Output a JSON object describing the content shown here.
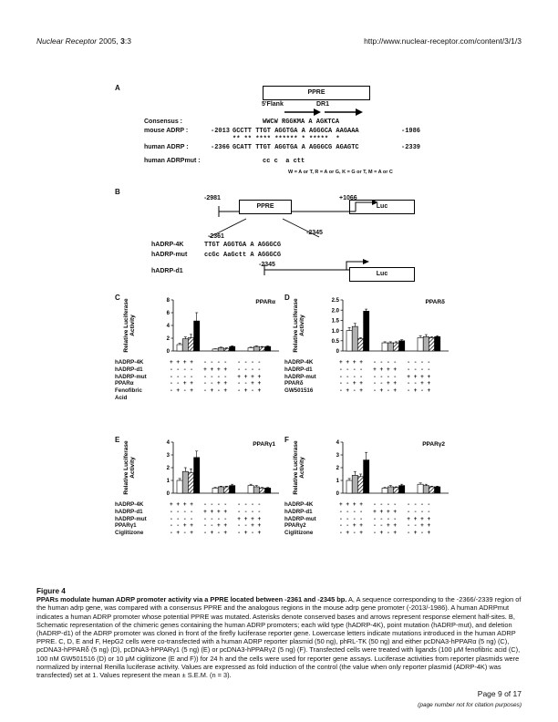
{
  "header": {
    "journal": "Nuclear Receptor",
    "volume": "2005, ",
    "issue": "3",
    "issue_suffix": ":3",
    "url": "http://www.nuclear-receptor.com/content/3/1/3"
  },
  "panel_a": {
    "label": "A",
    "ppre_box": "PPRE",
    "flank_label": "5'Flank",
    "dr1_label": "DR1",
    "rows": [
      {
        "name": "Consensus :",
        "start": "",
        "seq": "WWCW RGGKMA A AGKTCA",
        "end": ""
      },
      {
        "name": "mouse ADRP :",
        "start": "-2013",
        "seq": "GCCTT TTGT AGGTGA A AGGGCA AAGAAA",
        "end": "-1986"
      },
      {
        "name": "",
        "start": "",
        "seq": "** ** **** ****** * *****  *",
        "end": ""
      },
      {
        "name": "human ADRP :",
        "start": "-2366",
        "seq": "GCATT TTGT AGGTGA A AGGGCG AGAGTC",
        "end": "-2339"
      },
      {
        "name": "human ADRPmut :",
        "start": "",
        "seq": "cc c  a ctt",
        "end": ""
      }
    ],
    "legend": "W = A or T,   R = A or G,   K = G or T,   M = A or C"
  },
  "panel_b": {
    "label": "B",
    "pos_left": "-2981",
    "pos_right": "+1066",
    "ppre": "PPRE",
    "luc": "Luc",
    "pos_a": "-2361",
    "pos_b": "-2345",
    "pos_c": "-2345",
    "rows": [
      {
        "name": "hADRP-4K",
        "seq": "TTGT AGGTGA A AGGGCG"
      },
      {
        "name": "hADRP-mut",
        "seq": "ccGc AaGctt A AGGGCG"
      },
      {
        "name": "hADRP-d1",
        "seq": ""
      }
    ],
    "luc2": "Luc"
  },
  "chart_data": [
    {
      "panel": "C",
      "type": "bar",
      "title": "PPARα",
      "ylabel": "Relative Luciferase Activity",
      "ylim": [
        0,
        8
      ],
      "yticks": [
        "0",
        "2",
        "4",
        "6",
        "8"
      ],
      "values": [
        1.0,
        1.9,
        2.1,
        4.7,
        0.3,
        0.5,
        0.4,
        0.7,
        0.5,
        0.7,
        0.6,
        0.7
      ],
      "errors": [
        0.2,
        0.3,
        0.5,
        1.3,
        0.05,
        0.1,
        0.1,
        0.1,
        0.1,
        0.1,
        0.1,
        0.1
      ],
      "rows": [
        {
          "name": "hADRP-4K",
          "marks": "+ + + +   - - - -   - - - -"
        },
        {
          "name": "hADRP-d1",
          "marks": "- - - -   + + + +   - - - -"
        },
        {
          "name": "hADRP-mut",
          "marks": "- - - -   - - - -   + + + +"
        },
        {
          "name": "PPARα",
          "marks": "- - + +   - - + +   - - + +"
        },
        {
          "name": "Fenofibric",
          "marks": "- + - +   - + - +   - + - +"
        },
        {
          "name": "Acid",
          "marks": ""
        }
      ]
    },
    {
      "panel": "D",
      "type": "bar",
      "title": "PPARδ",
      "ylabel": "Relative Luciferase Activity",
      "ylim": [
        0,
        2.5
      ],
      "yticks": [
        "0",
        "0.5",
        "1.0",
        "1.5",
        "2.0",
        "2.5"
      ],
      "values": [
        1.0,
        1.2,
        0.6,
        1.95,
        0.4,
        0.4,
        0.4,
        0.5,
        0.65,
        0.7,
        0.65,
        0.7
      ],
      "errors": [
        0.15,
        0.15,
        0.05,
        0.1,
        0.05,
        0.05,
        0.05,
        0.05,
        0.1,
        0.1,
        0.05,
        0.05
      ],
      "rows": [
        {
          "name": "hADRP-4K",
          "marks": "+ + + +   - - - -   - - - -"
        },
        {
          "name": "hADRP-d1",
          "marks": "- - - -   + + + +   - - - -"
        },
        {
          "name": "hADRP-mut",
          "marks": "- - - -   - - - -   + + + +"
        },
        {
          "name": "PPARδ",
          "marks": "- - + +   - - + +   - - + +"
        },
        {
          "name": "GW501516",
          "marks": "- + - +   - + - +   - + - +"
        }
      ]
    },
    {
      "panel": "E",
      "type": "bar",
      "title": "PPARγ1",
      "ylabel": "Relative Luciferase Activity",
      "ylim": [
        0,
        4
      ],
      "yticks": [
        "0",
        "1",
        "2",
        "3",
        "4"
      ],
      "values": [
        1.0,
        1.7,
        1.6,
        2.8,
        0.4,
        0.5,
        0.5,
        0.6,
        0.6,
        0.5,
        0.4,
        0.4
      ],
      "errors": [
        0.15,
        0.3,
        0.3,
        0.5,
        0.05,
        0.05,
        0.05,
        0.1,
        0.1,
        0.1,
        0.05,
        0.05
      ],
      "rows": [
        {
          "name": "hADRP-4K",
          "marks": "+ + + +   - - - -   - - - -"
        },
        {
          "name": "hADRP-d1",
          "marks": "- - - -   + + + +   - - - -"
        },
        {
          "name": "hADRP-mut",
          "marks": "- - - -   - - - -   + + + +"
        },
        {
          "name": "PPARγ1",
          "marks": "- - + +   - - + +   - - + +"
        },
        {
          "name": "Ciglitizone",
          "marks": "- + - +   - + - +   - + - +"
        }
      ]
    },
    {
      "panel": "F",
      "type": "bar",
      "title": "PPARγ2",
      "ylabel": "Relative Luciferase Activity",
      "ylim": [
        0,
        4
      ],
      "yticks": [
        "0",
        "1",
        "2",
        "3",
        "4"
      ],
      "values": [
        1.0,
        1.4,
        1.3,
        2.6,
        0.4,
        0.5,
        0.45,
        0.6,
        0.7,
        0.6,
        0.5,
        0.5
      ],
      "errors": [
        0.15,
        0.3,
        0.2,
        0.6,
        0.05,
        0.1,
        0.05,
        0.1,
        0.1,
        0.1,
        0.05,
        0.05
      ],
      "rows": [
        {
          "name": "hADRP-4K",
          "marks": "+ + + +   - - - -   - - - -"
        },
        {
          "name": "hADRP-d1",
          "marks": "- - - -   + + + +   - - - -"
        },
        {
          "name": "hADRP-mut",
          "marks": "- - - -   - - - -   + + + +"
        },
        {
          "name": "PPARγ2",
          "marks": "- - + +   - - + +   - - + +"
        },
        {
          "name": "Ciglitizone",
          "marks": "- + - +   - + - +   - + - +"
        }
      ]
    }
  ],
  "caption": {
    "figure": "Figure 4",
    "title": "PPARs modulate human ADRP promoter activity via a PPRE located between -2361 and -2345 bp.",
    "body": "A, A sequence corresponding to the -2366/-2339 region of the human adrp gene, was compared with a consensus PPRE and the analogous regions in the mouse adrp gene promoter (-2013/-1986). A human ADRPmut indicates a human ADRP promoter whose potential PPRE was mutated. Asterisks denote conserved bases and arrows represent response element half-sites. B, Schematic representation of the chimeric genes containing the human ADRP promoters; each wild type (hADRP-4K), point mutation (hADRP-mut), and deletion (hADRP-d1) of the ADRP promoter was cloned in front of the firefly luciferase reporter gene. Lowercase letters indicate mutations introduced in the human ADRP PPRE. C, D, E and F, HepG2 cells were co-transfected with a human ADRP reporter plasmid (50 ng), phRL-TK (50 ng) and either pcDNA3-hPPARα (5 ng) (C), pcDNA3-hPPARδ (5 ng) (D), pcDNA3-hPPARγ1 (5 ng) (E) or pcDNA3-hPPARγ2 (5 ng) (F). Transfected cells were treated with ligands (100 μM fenofibric acid (C), 100 nM GW501516 (D) or 10 μM ciglitizone (E and F)) for 24 h and the cells were used for reporter gene assays. Luciferase activities from reporter plasmids were normalized by internal Renilla luciferase activity. Values are expressed as fold induction of the control (the value when only reporter plasmid (ADRP-4K) was transfected) set at 1. Values represent the mean ± S.E.M. (n = 3)."
  },
  "footer": {
    "page": "Page 9 of 17",
    "note": "(page number not for citation purposes)"
  }
}
